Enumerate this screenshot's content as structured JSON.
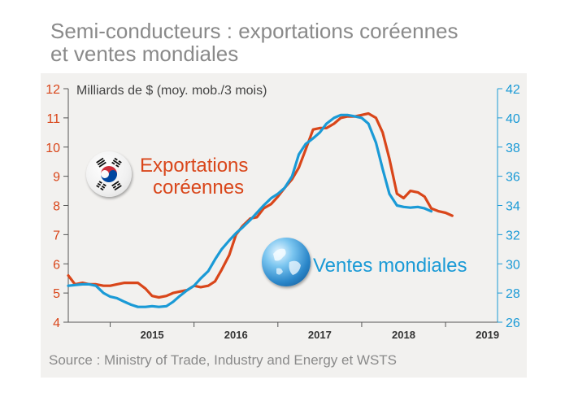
{
  "title_line1": "Semi-conducteurs : exportations coréennes",
  "title_line2": "et ventes mondiales",
  "source": "Source : Ministry of Trade, Industry and Energy et WSTS",
  "colors": {
    "exports": "#d9461a",
    "sales": "#1a9ad6",
    "panel": "#f2f1ef",
    "axis": "#555555"
  },
  "chart_data": {
    "type": "line",
    "unit_label": "Milliards de $ (moy. mob./3 mois)",
    "x_ticks": [
      "2015",
      "2016",
      "2017",
      "2018",
      "2019"
    ],
    "x_range": [
      2014.5,
      2019.62
    ],
    "left_axis": {
      "ticks": [
        4,
        5,
        6,
        7,
        8,
        9,
        10,
        11,
        12
      ],
      "range": [
        4,
        12
      ]
    },
    "right_axis": {
      "ticks": [
        26,
        28,
        30,
        32,
        34,
        36,
        38,
        40,
        42
      ],
      "range": [
        26,
        42
      ]
    },
    "series": [
      {
        "name": "Exportations coréennes",
        "axis": "left",
        "label_line1": "Exportations",
        "label_line2": "coréennes",
        "points": [
          [
            2014.5,
            5.6
          ],
          [
            2014.58,
            5.3
          ],
          [
            2014.67,
            5.35
          ],
          [
            2014.75,
            5.3
          ],
          [
            2014.83,
            5.3
          ],
          [
            2014.92,
            5.25
          ],
          [
            2015.0,
            5.25
          ],
          [
            2015.08,
            5.3
          ],
          [
            2015.17,
            5.35
          ],
          [
            2015.25,
            5.35
          ],
          [
            2015.33,
            5.35
          ],
          [
            2015.42,
            5.15
          ],
          [
            2015.5,
            4.9
          ],
          [
            2015.58,
            4.85
          ],
          [
            2015.67,
            4.9
          ],
          [
            2015.75,
            5.0
          ],
          [
            2015.83,
            5.05
          ],
          [
            2015.92,
            5.1
          ],
          [
            2016.0,
            5.25
          ],
          [
            2016.08,
            5.2
          ],
          [
            2016.17,
            5.25
          ],
          [
            2016.25,
            5.4
          ],
          [
            2016.33,
            5.8
          ],
          [
            2016.42,
            6.3
          ],
          [
            2016.5,
            7.0
          ],
          [
            2016.58,
            7.3
          ],
          [
            2016.67,
            7.55
          ],
          [
            2016.75,
            7.6
          ],
          [
            2016.83,
            7.9
          ],
          [
            2016.92,
            8.05
          ],
          [
            2017.0,
            8.3
          ],
          [
            2017.08,
            8.6
          ],
          [
            2017.17,
            8.9
          ],
          [
            2017.25,
            9.3
          ],
          [
            2017.33,
            9.9
          ],
          [
            2017.42,
            10.6
          ],
          [
            2017.5,
            10.65
          ],
          [
            2017.58,
            10.65
          ],
          [
            2017.67,
            10.8
          ],
          [
            2017.75,
            11.0
          ],
          [
            2017.83,
            11.05
          ],
          [
            2017.92,
            11.05
          ],
          [
            2018.0,
            11.1
          ],
          [
            2018.08,
            11.15
          ],
          [
            2018.17,
            11.0
          ],
          [
            2018.25,
            10.5
          ],
          [
            2018.33,
            9.6
          ],
          [
            2018.42,
            8.4
          ],
          [
            2018.5,
            8.25
          ],
          [
            2018.58,
            8.5
          ],
          [
            2018.67,
            8.45
          ],
          [
            2018.75,
            8.3
          ],
          [
            2018.83,
            7.9
          ],
          [
            2018.92,
            7.8
          ],
          [
            2019.0,
            7.75
          ],
          [
            2019.08,
            7.65
          ]
        ]
      },
      {
        "name": "Ventes mondiales",
        "axis": "right",
        "label_line1": "Ventes mondiales",
        "points": [
          [
            2014.5,
            28.5
          ],
          [
            2014.58,
            28.55
          ],
          [
            2014.67,
            28.6
          ],
          [
            2014.75,
            28.6
          ],
          [
            2014.83,
            28.5
          ],
          [
            2014.92,
            28.0
          ],
          [
            2015.0,
            27.75
          ],
          [
            2015.08,
            27.65
          ],
          [
            2015.17,
            27.4
          ],
          [
            2015.25,
            27.2
          ],
          [
            2015.33,
            27.05
          ],
          [
            2015.42,
            27.05
          ],
          [
            2015.5,
            27.1
          ],
          [
            2015.58,
            27.05
          ],
          [
            2015.67,
            27.1
          ],
          [
            2015.75,
            27.4
          ],
          [
            2015.83,
            27.8
          ],
          [
            2015.92,
            28.2
          ],
          [
            2016.0,
            28.5
          ],
          [
            2016.08,
            29.0
          ],
          [
            2016.17,
            29.5
          ],
          [
            2016.25,
            30.3
          ],
          [
            2016.33,
            31.0
          ],
          [
            2016.42,
            31.6
          ],
          [
            2016.5,
            32.1
          ],
          [
            2016.58,
            32.5
          ],
          [
            2016.67,
            33.0
          ],
          [
            2016.75,
            33.5
          ],
          [
            2016.83,
            34.0
          ],
          [
            2016.92,
            34.5
          ],
          [
            2017.0,
            34.8
          ],
          [
            2017.08,
            35.2
          ],
          [
            2017.17,
            36.0
          ],
          [
            2017.25,
            37.5
          ],
          [
            2017.33,
            38.2
          ],
          [
            2017.42,
            38.6
          ],
          [
            2017.5,
            39.0
          ],
          [
            2017.58,
            39.6
          ],
          [
            2017.67,
            40.0
          ],
          [
            2017.75,
            40.2
          ],
          [
            2017.83,
            40.2
          ],
          [
            2017.92,
            40.1
          ],
          [
            2018.0,
            40.0
          ],
          [
            2018.08,
            39.6
          ],
          [
            2018.17,
            38.3
          ],
          [
            2018.25,
            36.5
          ],
          [
            2018.33,
            34.8
          ],
          [
            2018.42,
            34.0
          ],
          [
            2018.5,
            33.9
          ],
          [
            2018.58,
            33.85
          ],
          [
            2018.67,
            33.9
          ],
          [
            2018.75,
            33.8
          ],
          [
            2018.83,
            33.6
          ]
        ]
      }
    ]
  }
}
